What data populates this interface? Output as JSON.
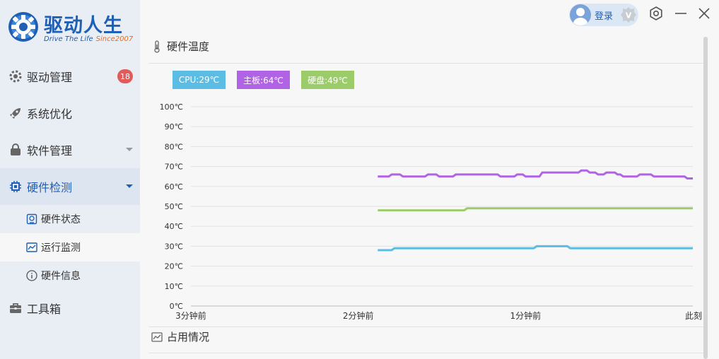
{
  "app": {
    "logo_title": "驱动人生",
    "logo_subtitle": "Drive The Life",
    "logo_since": "Since2007"
  },
  "topbar": {
    "login_label": "登录",
    "vip_mark": "V"
  },
  "sidebar": {
    "items": [
      {
        "label": "驱动管理",
        "badge": "18",
        "icon": "gear-icon"
      },
      {
        "label": "系统优化",
        "icon": "rocket-icon"
      },
      {
        "label": "软件管理",
        "icon": "bag-icon"
      },
      {
        "label": "硬件检测",
        "icon": "chip-icon"
      },
      {
        "label": "工具箱",
        "icon": "toolbox-icon"
      }
    ],
    "sub_items": [
      {
        "label": "硬件状态",
        "icon": "hardware-status-icon"
      },
      {
        "label": "运行监测",
        "icon": "monitor-chart-icon"
      },
      {
        "label": "硬件信息",
        "icon": "info-icon"
      }
    ]
  },
  "main": {
    "temperature_title": "硬件温度",
    "usage_title": "占用情况",
    "legend": [
      {
        "label": "CPU:29℃",
        "color": "#5bbde4"
      },
      {
        "label": "主板:64℃",
        "color": "#b063e4"
      },
      {
        "label": "硬盘:49℃",
        "color": "#9ccc6a"
      }
    ]
  },
  "colors": {
    "accent": "#1f5fb4",
    "badge": "#e25b5b",
    "cpu": "#5bbde4",
    "board": "#b063e4",
    "disk": "#9ccc6a"
  },
  "chart_data": {
    "type": "line",
    "title": "",
    "xlabel": "",
    "ylabel": "",
    "y_unit": "℃",
    "ylim": [
      0,
      100
    ],
    "y_ticks": [
      "0℃",
      "10℃",
      "20℃",
      "30℃",
      "40℃",
      "50℃",
      "60℃",
      "70℃",
      "80℃",
      "90℃",
      "100℃"
    ],
    "x_range_seconds": [
      -180,
      0
    ],
    "x_ticks": [
      {
        "label": "3分钟前",
        "t": -180
      },
      {
        "label": "2分钟前",
        "t": -120
      },
      {
        "label": "1分钟前",
        "t": -60
      },
      {
        "label": "此刻",
        "t": 0
      }
    ],
    "grid": true,
    "series": [
      {
        "name": "主板",
        "color": "#b063e4",
        "points": [
          [
            -113,
            65
          ],
          [
            -109,
            65
          ],
          [
            -108,
            66
          ],
          [
            -105,
            66
          ],
          [
            -104,
            65
          ],
          [
            -96,
            65
          ],
          [
            -95,
            66
          ],
          [
            -92,
            66
          ],
          [
            -91,
            65
          ],
          [
            -86,
            65
          ],
          [
            -85,
            66
          ],
          [
            -70,
            66
          ],
          [
            -69,
            65
          ],
          [
            -64,
            65
          ],
          [
            -63,
            66
          ],
          [
            -61,
            66
          ],
          [
            -60,
            65
          ],
          [
            -55,
            65
          ],
          [
            -54,
            67
          ],
          [
            -41,
            67
          ],
          [
            -40,
            68
          ],
          [
            -38,
            68
          ],
          [
            -37,
            67
          ],
          [
            -35,
            67
          ],
          [
            -34,
            66
          ],
          [
            -32,
            66
          ],
          [
            -31,
            67
          ],
          [
            -28,
            67
          ],
          [
            -27,
            66
          ],
          [
            -26,
            66
          ],
          [
            -25,
            65
          ],
          [
            -20,
            65
          ],
          [
            -19,
            66
          ],
          [
            -15,
            66
          ],
          [
            -14,
            65
          ],
          [
            -3,
            65
          ],
          [
            -2,
            64
          ],
          [
            0,
            64
          ]
        ]
      },
      {
        "name": "硬盘",
        "color": "#9ccc6a",
        "points": [
          [
            -113,
            48
          ],
          [
            -82,
            48
          ],
          [
            -81,
            49
          ],
          [
            0,
            49
          ]
        ]
      },
      {
        "name": "CPU",
        "color": "#5bbde4",
        "points": [
          [
            -113,
            28
          ],
          [
            -108,
            28
          ],
          [
            -107,
            29
          ],
          [
            -57,
            29
          ],
          [
            -56,
            30
          ],
          [
            -45,
            30
          ],
          [
            -44,
            29
          ],
          [
            0,
            29
          ]
        ]
      }
    ]
  }
}
